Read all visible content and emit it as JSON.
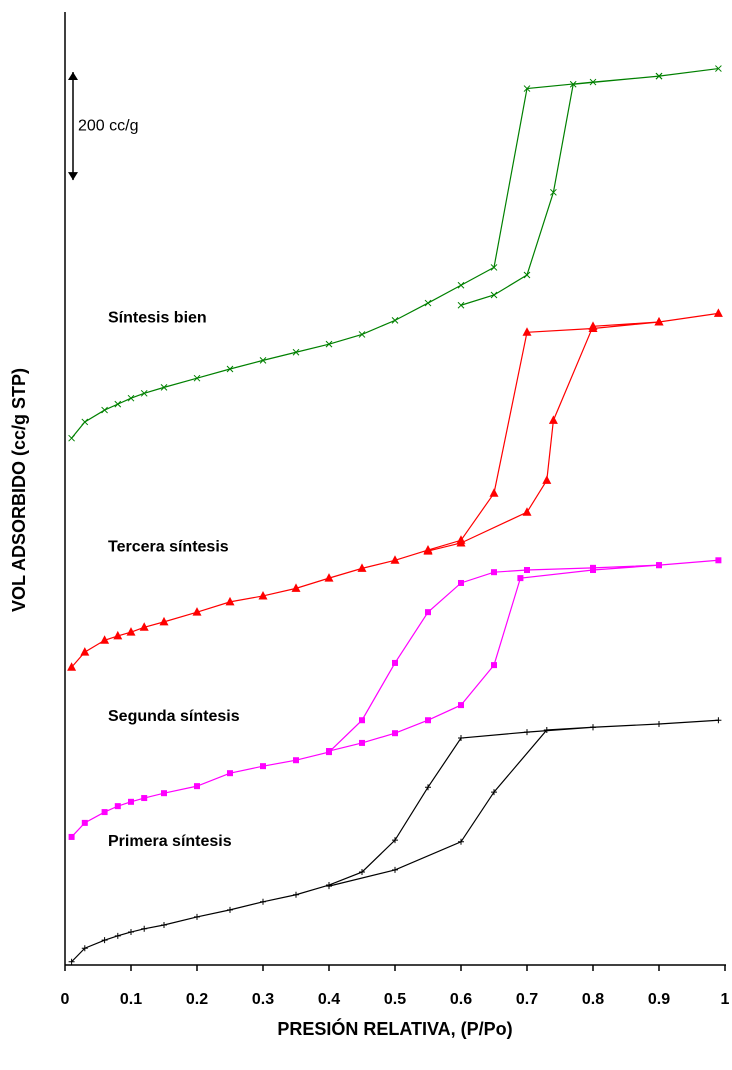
{
  "chart_data": {
    "type": "line",
    "xlabel": "PRESIÓN RELATIVA, (P/Po)",
    "ylabel": "VOL ADSORBIDO (cc/g STP)",
    "xlim": [
      0,
      1
    ],
    "xticks": [
      0,
      0.1,
      0.2,
      0.3,
      0.4,
      0.5,
      0.6,
      0.7,
      0.8,
      0.9,
      1
    ],
    "ylim": [
      0,
      1760
    ],
    "scale_bar": {
      "value": 200,
      "label": "200 cc/g"
    },
    "series": [
      {
        "name": "Primera síntesis",
        "color": "#000000",
        "marker": "plus",
        "x": [
          0.01,
          0.03,
          0.06,
          0.08,
          0.1,
          0.12,
          0.15,
          0.2,
          0.25,
          0.3,
          0.35,
          0.4,
          0.45,
          0.5,
          0.55,
          0.6,
          0.7,
          0.8,
          0.9,
          0.99,
          0.9,
          0.8,
          0.73,
          0.65,
          0.6,
          0.5,
          0.4
        ],
        "values": [
          6,
          31,
          46,
          54,
          61,
          67,
          74,
          89,
          102,
          117,
          130,
          148,
          172,
          231,
          329,
          420,
          431,
          440,
          446,
          453,
          446,
          440,
          435,
          320,
          228,
          176,
          146
        ]
      },
      {
        "name": "Segunda síntesis",
        "color": "#ff00ff",
        "marker": "square",
        "x": [
          0.01,
          0.03,
          0.06,
          0.08,
          0.1,
          0.12,
          0.15,
          0.2,
          0.25,
          0.3,
          0.35,
          0.4,
          0.45,
          0.5,
          0.55,
          0.6,
          0.65,
          0.7,
          0.8,
          0.9,
          0.99,
          0.9,
          0.8,
          0.69,
          0.65,
          0.6,
          0.55,
          0.5,
          0.45,
          0.4
        ],
        "values": [
          237,
          263,
          283,
          294,
          302,
          309,
          318,
          331,
          355,
          368,
          379,
          394,
          453,
          559,
          653,
          707,
          727,
          731,
          735,
          740,
          749,
          740,
          731,
          716,
          555,
          481,
          453,
          429,
          411,
          396
        ]
      },
      {
        "name": "Tercera síntesis",
        "color": "#ff0000",
        "marker": "triangle",
        "x": [
          0.01,
          0.03,
          0.06,
          0.08,
          0.1,
          0.12,
          0.15,
          0.2,
          0.25,
          0.3,
          0.35,
          0.4,
          0.45,
          0.5,
          0.55,
          0.6,
          0.65,
          0.7,
          0.8,
          0.9,
          0.99,
          0.9,
          0.8,
          0.74,
          0.73,
          0.7,
          0.6,
          0.55
        ],
        "values": [
          551,
          579,
          601,
          609,
          616,
          625,
          635,
          653,
          672,
          683,
          697,
          716,
          734,
          749,
          768,
          786,
          873,
          1171,
          1178,
          1190,
          1206,
          1190,
          1182,
          1008,
          897,
          838,
          781,
          766
        ]
      },
      {
        "name": "Síntesis bien",
        "color": "#008000",
        "marker": "cross",
        "x": [
          0.01,
          0.03,
          0.06,
          0.08,
          0.1,
          0.12,
          0.15,
          0.2,
          0.25,
          0.3,
          0.35,
          0.4,
          0.45,
          0.5,
          0.55,
          0.6,
          0.65,
          0.7,
          0.8,
          0.9,
          0.99,
          0.9,
          0.77,
          0.74,
          0.7,
          0.65,
          0.6
        ],
        "values": [
          975,
          1005,
          1027,
          1038,
          1049,
          1058,
          1069,
          1086,
          1103,
          1119,
          1134,
          1149,
          1167,
          1193,
          1225,
          1258,
          1291,
          1622,
          1634,
          1645,
          1659,
          1645,
          1630,
          1430,
          1277,
          1240,
          1221
        ]
      }
    ]
  }
}
